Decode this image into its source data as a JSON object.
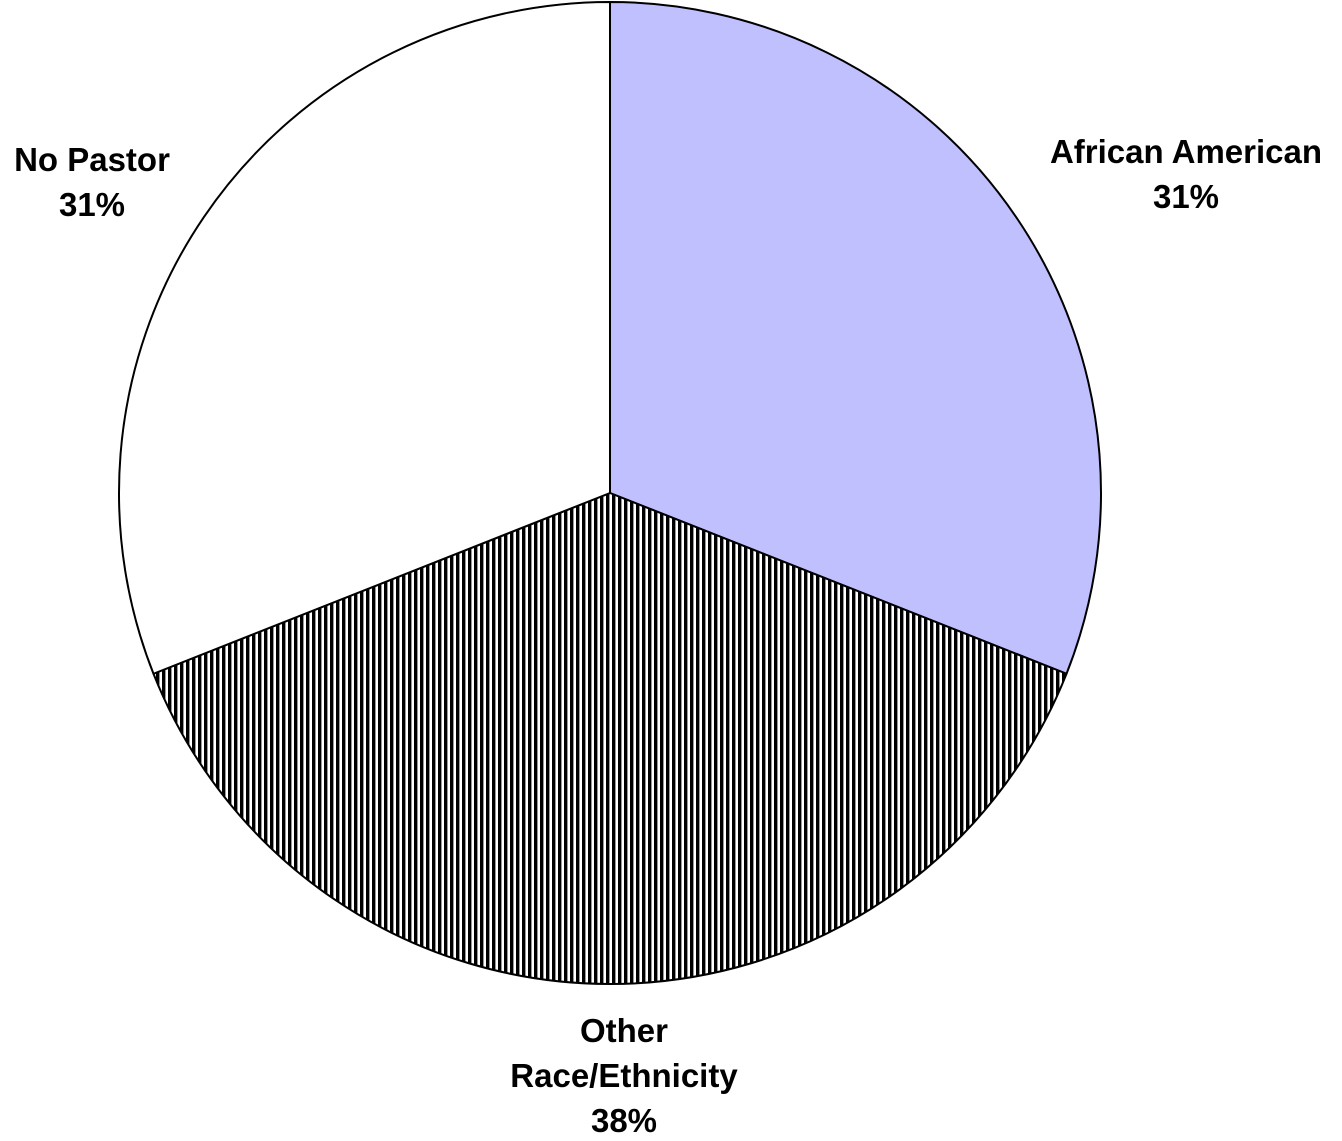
{
  "chart_data": {
    "type": "pie",
    "title": "",
    "start_angle_deg": 0,
    "direction": "clockwise",
    "slices": [
      {
        "name": "African American",
        "value": 31,
        "label_lines": [
          "African American"
        ],
        "percent_label": "31%",
        "fill": "#c0c0ff",
        "pattern": "solid"
      },
      {
        "name": "Other Race/Ethnicity",
        "value": 38,
        "label_lines": [
          "Other",
          "Race/Ethnicity"
        ],
        "percent_label": "38%",
        "fill": "#000000",
        "pattern": "vertical-stripes"
      },
      {
        "name": "No Pastor",
        "value": 31,
        "label_lines": [
          "No Pastor"
        ],
        "percent_label": "31%",
        "fill": "#ffffff",
        "pattern": "solid"
      }
    ],
    "legend": "none",
    "outline_color": "#000000"
  }
}
